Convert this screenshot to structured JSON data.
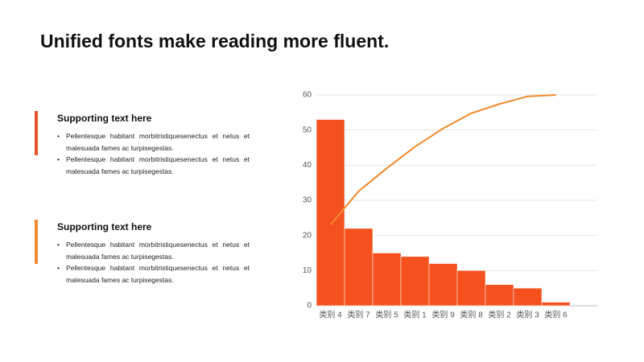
{
  "title": "Unified fonts make reading more fluent.",
  "sections": [
    {
      "heading": "Supporting text here",
      "color": "#e8542a",
      "bullets": [
        "Pellentesque habitant morbitristiquesenectus et netus et malesuada fames ac turpisegestas.",
        "Pellentesque habitant morbitristiquesenectus et netus et malesuada fames ac turpisegestas."
      ]
    },
    {
      "heading": "Supporting text here",
      "color": "#f08a30",
      "bullets": [
        "Pellentesque habitant morbitristiquesenectus et netus et malesuada fames ac turpisegestas.",
        "Pellentesque habitant morbitristiquesenectus et netus et malesuada fames ac turpisegestas."
      ]
    }
  ],
  "chart_data": {
    "type": "pareto",
    "categories": [
      "类别 4",
      "类别 7",
      "类别 5",
      "类别 1",
      "类别 9",
      "类别 8",
      "类别 2",
      "类别 3",
      "类别 6"
    ],
    "series": [
      {
        "color": "#f4511e",
        "values": [
          53,
          22,
          15,
          14,
          12,
          10,
          6,
          5,
          1
        ]
      },
      {
        "color": "#f08a2c",
        "axis": "y2",
        "values": [
          38.4,
          54.3,
          65.2,
          75.4,
          84.1,
          91.3,
          95.7,
          99.3,
          100
        ]
      }
    ],
    "ylim": [
      0,
      60
    ],
    "yticks": [
      0,
      10,
      20,
      30,
      40,
      50,
      60
    ],
    "y2lim": [
      0,
      100
    ],
    "grid": true
  }
}
